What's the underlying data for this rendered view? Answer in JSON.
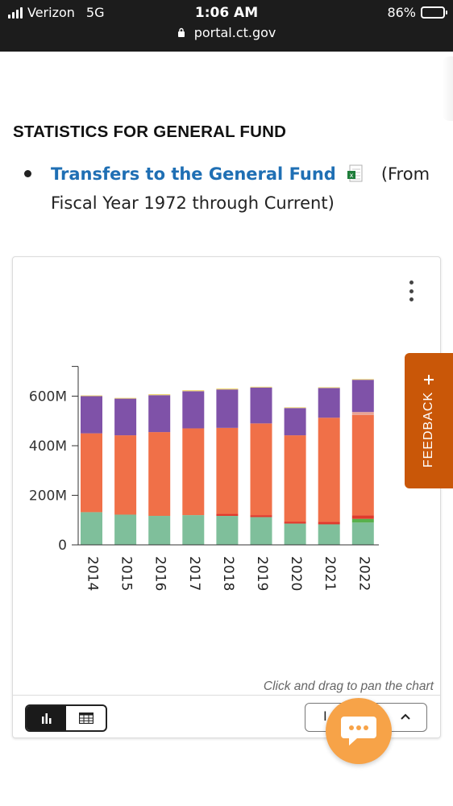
{
  "status_bar": {
    "carrier": "Verizon",
    "network": "5G",
    "time": "1:06 AM",
    "url": "portal.ct.gov",
    "battery": "86%",
    "battery_level": 0.86
  },
  "page": {
    "heading": "STATISTICS FOR GENERAL FUND",
    "bullet": {
      "link_text": "Transfers to the General Fund",
      "link_icon": "excel-file-icon",
      "text_after": "(From",
      "text_line2": "Fiscal Year 1972 through Current)"
    }
  },
  "chart_data": {
    "type": "bar",
    "stacked": true,
    "categories": [
      "2014",
      "2015",
      "2016",
      "2017",
      "2018",
      "2019",
      "2020",
      "2021",
      "2022"
    ],
    "y_tick_labels": [
      "0",
      "200M",
      "400M",
      "600M"
    ],
    "y_ticks": [
      0,
      200,
      400,
      600
    ],
    "ylim": [
      0,
      720
    ],
    "units": "M",
    "grid": false,
    "series": [
      {
        "color": "#7fbf9b",
        "values": [
          132,
          122,
          117,
          120,
          117,
          112,
          86,
          83,
          90
        ]
      },
      {
        "color": "#58b04c",
        "values": [
          0,
          0,
          0,
          0,
          0,
          0,
          0,
          0,
          15
        ]
      },
      {
        "color": "#e03a2c",
        "values": [
          0,
          0,
          0,
          0,
          8,
          8,
          8,
          10,
          14
        ]
      },
      {
        "color": "#f07048",
        "values": [
          318,
          320,
          338,
          350,
          347,
          370,
          348,
          420,
          405
        ]
      },
      {
        "color": "#e8a394",
        "values": [
          0,
          0,
          0,
          0,
          0,
          0,
          0,
          0,
          12
        ]
      },
      {
        "color": "#7f52a8",
        "values": [
          150,
          148,
          149,
          150,
          155,
          145,
          110,
          120,
          130
        ]
      },
      {
        "color": "#f0d870",
        "values": [
          3,
          3,
          4,
          4,
          4,
          3,
          3,
          3,
          3
        ]
      }
    ],
    "pan_hint": "Click and drag to pan the chart"
  },
  "controls": {
    "chart_view_icon": "bar-chart-icon",
    "table_view_icon": "table-icon",
    "dropdown_label": "I",
    "dropdown_icon": "chevron-up-icon",
    "chat_icon": "chat-bubble-icon",
    "more_icon": "kebab-menu-icon"
  },
  "feedback": {
    "label": "FEEDBACK",
    "icon": "plus-icon"
  },
  "colors": {
    "link": "#1f6fb4",
    "feedback": "#c95708",
    "chat": "#f7a348"
  }
}
